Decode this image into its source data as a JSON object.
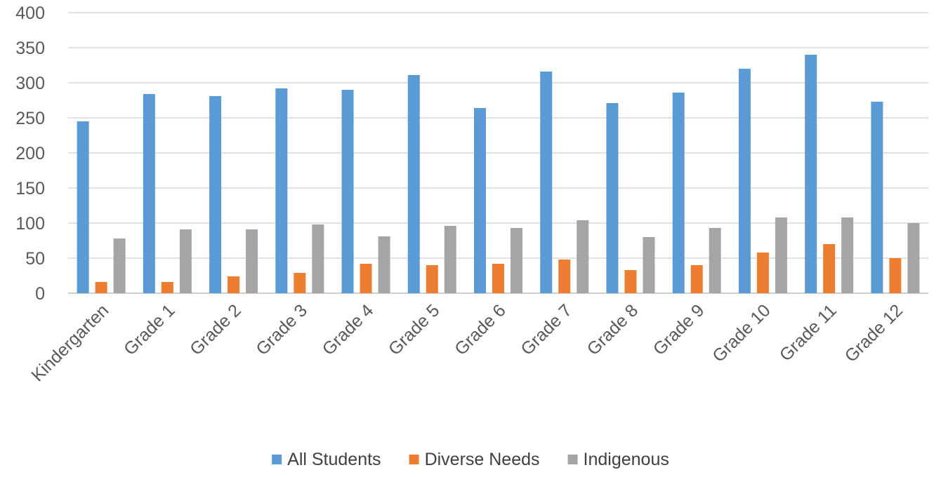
{
  "chart_data": {
    "type": "bar",
    "title": "",
    "xlabel": "",
    "ylabel": "",
    "ylim": [
      0,
      400
    ],
    "yticks": [
      0,
      50,
      100,
      150,
      200,
      250,
      300,
      350,
      400
    ],
    "grid": true,
    "legend_position": "bottom",
    "categories": [
      "Kindergarten",
      "Grade 1",
      "Grade 2",
      "Grade 3",
      "Grade 4",
      "Grade 5",
      "Grade 6",
      "Grade 7",
      "Grade 8",
      "Grade 9",
      "Grade 10",
      "Grade 11",
      "Grade 12"
    ],
    "series": [
      {
        "name": "All Students",
        "color": "#5b9bd5",
        "values": [
          245,
          284,
          281,
          292,
          290,
          311,
          264,
          316,
          271,
          286,
          320,
          340,
          273
        ]
      },
      {
        "name": "Diverse Needs",
        "color": "#ed7d31",
        "values": [
          16,
          16,
          24,
          29,
          42,
          40,
          42,
          48,
          33,
          40,
          58,
          70,
          50
        ]
      },
      {
        "name": "Indigenous",
        "color": "#a5a5a5",
        "values": [
          78,
          91,
          91,
          98,
          81,
          96,
          93,
          104,
          80,
          93,
          108,
          108,
          100
        ]
      }
    ]
  }
}
